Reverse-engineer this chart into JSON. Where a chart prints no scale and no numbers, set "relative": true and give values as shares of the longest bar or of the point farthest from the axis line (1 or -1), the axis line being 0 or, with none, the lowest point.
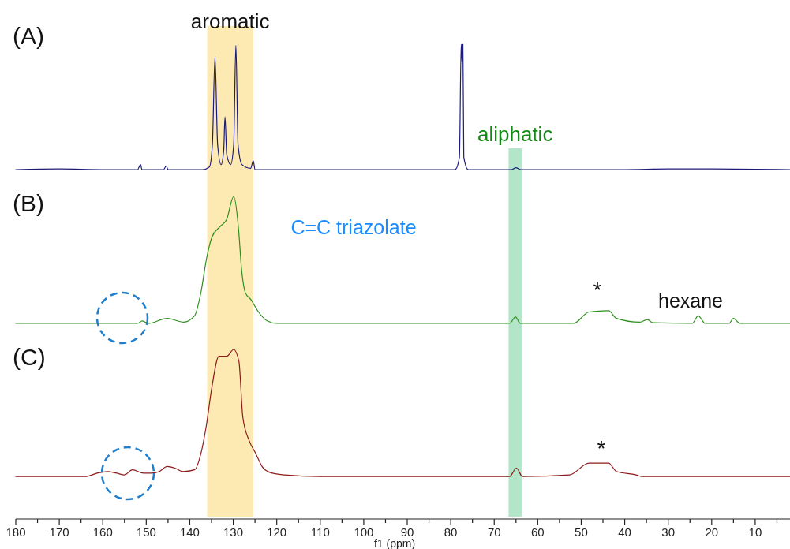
{
  "chart_data": [
    {
      "type": "line",
      "title": "(A)",
      "relative": true,
      "xlim": [
        180,
        2
      ],
      "tick_labels": false,
      "bands": [
        {
          "axis": "x",
          "from": 125.4,
          "to": 136,
          "label": "aromatic",
          "color": "#fdeab3"
        },
        {
          "axis": "x",
          "from": 63.7,
          "to": 66.7,
          "label": "aliphatic",
          "color": "#b3e6c8"
        }
      ],
      "series": [
        {
          "color": "#1c1c7c",
          "x": [
            180,
            170,
            160,
            152,
            151.3,
            151,
            146,
            145.4,
            145,
            137,
            135.5,
            134.8,
            134.2,
            133.6,
            132.8,
            132.2,
            131.9,
            131.5,
            130.6,
            129.9,
            129.4,
            128.9,
            128,
            126,
            125.4,
            125,
            110,
            90,
            79,
            78,
            77.6,
            77.4,
            77.2,
            77,
            76,
            66,
            65,
            64,
            40,
            30,
            20,
            2
          ],
          "values": [
            0,
            0.005,
            0,
            0,
            0.04,
            0,
            0,
            0.03,
            0,
            0,
            0.02,
            0.2,
            0.9,
            0.2,
            0.04,
            0.15,
            0.42,
            0.12,
            0.04,
            0.2,
            0.99,
            0.2,
            0.04,
            0.01,
            0.07,
            0,
            0,
            0,
            0,
            0.1,
            1,
            0.85,
            1,
            0.1,
            0,
            0,
            0.015,
            0,
            0,
            0.005,
            0.005,
            0
          ]
        }
      ]
    },
    {
      "type": "line",
      "title": "(B)",
      "relative": true,
      "xlim": [
        180,
        2
      ],
      "tick_labels": false,
      "bands": [
        {
          "axis": "x",
          "from": 125.4,
          "to": 136,
          "color": "#fdeab3"
        },
        {
          "axis": "x",
          "from": 63.7,
          "to": 66.7,
          "color": "#b3e6c8"
        }
      ],
      "annotations": [
        "C=C triazolate",
        "*",
        "hexane"
      ],
      "series": [
        {
          "color": "#2e8f1e",
          "x": [
            180,
            160,
            152,
            150.9,
            149.5,
            145.2,
            141.4,
            138.9,
            137.4,
            136.2,
            134.9,
            133.1,
            131.5,
            129.9,
            128.8,
            128.1,
            127.2,
            126,
            124.2,
            122.2,
            120,
            100,
            66.5,
            65.1,
            64,
            51.8,
            48.2,
            43.7,
            41.9,
            36.5,
            34.8,
            33.5,
            24.5,
            23.1,
            21.5,
            16,
            15,
            13.5,
            2
          ],
          "values": [
            0,
            0,
            0,
            0.02,
            0,
            0.04,
            0.01,
            0.06,
            0.25,
            0.5,
            0.68,
            0.76,
            0.82,
            1,
            0.75,
            0.43,
            0.24,
            0.19,
            0.09,
            0.02,
            0,
            0,
            0,
            0.05,
            0,
            0,
            0.09,
            0.1,
            0.04,
            0.01,
            0.03,
            0.005,
            0,
            0.06,
            0,
            0,
            0.04,
            0,
            0
          ]
        }
      ]
    },
    {
      "type": "line",
      "title": "(C)",
      "relative": true,
      "xlim": [
        180,
        2
      ],
      "xlabel": "f1 (ppm)",
      "xticks": [
        180,
        {
          "value": 175,
          "label": null
        },
        170,
        {
          "value": 165,
          "label": null
        },
        160,
        {
          "value": 155,
          "label": null
        },
        150,
        {
          "value": 145,
          "label": null
        },
        140,
        {
          "value": 135,
          "label": null
        },
        130,
        {
          "value": 125,
          "label": null
        },
        120,
        {
          "value": 115,
          "label": null
        },
        110,
        {
          "value": 105,
          "label": null
        },
        100,
        {
          "value": 95,
          "label": null
        },
        90,
        {
          "value": 85,
          "label": null
        },
        80,
        {
          "value": 75,
          "label": null
        },
        70,
        {
          "value": 65,
          "label": null
        },
        60,
        {
          "value": 55,
          "label": null
        },
        50,
        {
          "value": 45,
          "label": null
        },
        40,
        {
          "value": 35,
          "label": null
        },
        30,
        {
          "value": 25,
          "label": null
        },
        20,
        {
          "value": 15,
          "label": null
        },
        10,
        {
          "value": 5,
          "label": null
        }
      ],
      "bands": [
        {
          "axis": "x",
          "from": 125.4,
          "to": 136,
          "color": "#fdeab3"
        },
        {
          "axis": "x",
          "from": 63.7,
          "to": 66.7,
          "color": "#b3e6c8"
        }
      ],
      "annotations": [
        "*"
      ],
      "series": [
        {
          "color": "#8e1b1b",
          "x": [
            180,
            164,
            161.3,
            159,
            156.8,
            155,
            153.2,
            150.6,
            148.8,
            147,
            145.2,
            143.4,
            141.6,
            138.9,
            137.4,
            136.2,
            134.9,
            133.3,
            131.5,
            129.9,
            128.7,
            127.8,
            126.3,
            124.9,
            123.1,
            121,
            118.2,
            110,
            66.5,
            64.9,
            63.5,
            52.7,
            48.2,
            43.7,
            41.9,
            37.4,
            36,
            20,
            2
          ],
          "values": [
            0.25,
            0.25,
            0.27,
            0.28,
            0.27,
            0.26,
            0.29,
            0.27,
            0.27,
            0.28,
            0.31,
            0.3,
            0.28,
            0.29,
            0.39,
            0.55,
            0.78,
            0.96,
            0.96,
            1,
            0.93,
            0.6,
            0.46,
            0.39,
            0.3,
            0.27,
            0.26,
            0.25,
            0.25,
            0.3,
            0.25,
            0.26,
            0.33,
            0.33,
            0.28,
            0.26,
            0.25,
            0.25,
            0.25
          ]
        }
      ]
    }
  ]
}
